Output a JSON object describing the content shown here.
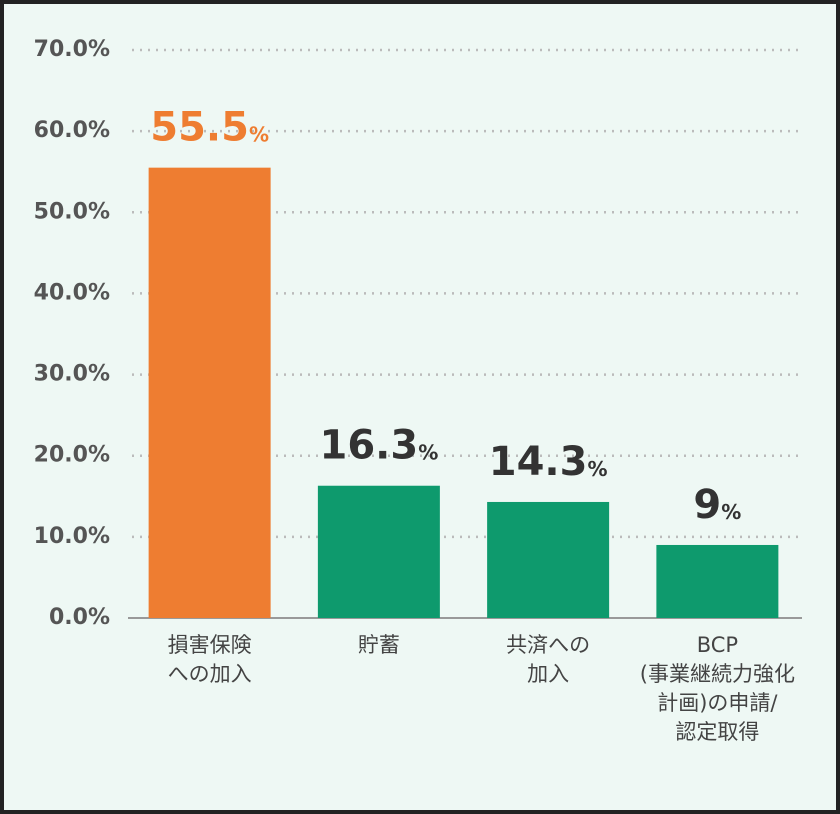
{
  "chart_data": {
    "type": "bar",
    "categories": [
      "損害保険\nへの加入",
      "貯蓄",
      "共済への\n加入",
      "BCP\n(事業継続力強化\n計画)の申請/\n認定取得"
    ],
    "values": [
      55.5,
      16.3,
      14.3,
      9
    ],
    "value_labels": [
      "55.5%",
      "16.3%",
      "14.3%",
      "9%"
    ],
    "colors": [
      "#ee7d31",
      "#0e9a6d",
      "#0e9a6d",
      "#0e9a6d"
    ],
    "label_colors": [
      "#ee7d31",
      "#333333",
      "#333333",
      "#333333"
    ],
    "ylim": [
      0,
      70
    ],
    "yticks": [
      {
        "value": 0,
        "label": "0.0%"
      },
      {
        "value": 10,
        "label": "10.0%"
      },
      {
        "value": 20,
        "label": "20.0%"
      },
      {
        "value": 30,
        "label": "30.0%"
      },
      {
        "value": 40,
        "label": "40.0%"
      },
      {
        "value": 50,
        "label": "50.0%"
      },
      {
        "value": 60,
        "label": "60.0%"
      },
      {
        "value": 70,
        "label": "70.0%"
      }
    ],
    "grid": true
  }
}
